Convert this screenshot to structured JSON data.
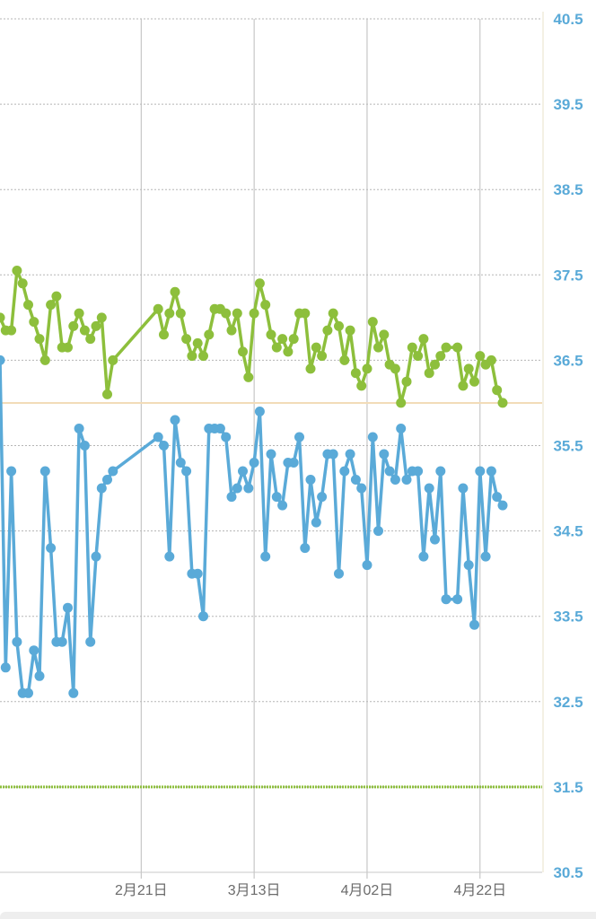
{
  "chart_data": {
    "type": "line",
    "xaxis": {
      "start": "2025-01-27",
      "end": "2025-05-03",
      "ticks": [
        {
          "date": "2025-02-21",
          "label": "2月21日"
        },
        {
          "date": "2025-03-13",
          "label": "3月13日"
        },
        {
          "date": "2025-04-02",
          "label": "4月02日"
        },
        {
          "date": "2025-04-22",
          "label": "4月22日"
        }
      ]
    },
    "yaxis": {
      "position": "right",
      "range": [
        30.5,
        40.5
      ],
      "ticks": [
        "40.5",
        "39.5",
        "38.5",
        "37.5",
        "36.5",
        "35.5",
        "34.5",
        "33.5",
        "32.5",
        "31.5",
        "30.5"
      ]
    },
    "grid": true,
    "reference_lines": [
      {
        "y": 36.0,
        "color": "#f2dcb8",
        "style": "solid"
      },
      {
        "y": 31.5,
        "color": "#8dbf3c",
        "style": "dotted"
      }
    ],
    "series": [
      {
        "color": "#8dbf3c",
        "points": [
          [
            "2025-01-27",
            37.0
          ],
          [
            "2025-01-28",
            36.85
          ],
          [
            "2025-01-29",
            36.85
          ],
          [
            "2025-01-30",
            37.55
          ],
          [
            "2025-01-31",
            37.4
          ],
          [
            "2025-02-01",
            37.15
          ],
          [
            "2025-02-02",
            36.95
          ],
          [
            "2025-02-03",
            36.75
          ],
          [
            "2025-02-04",
            36.5
          ],
          [
            "2025-02-05",
            37.15
          ],
          [
            "2025-02-06",
            37.25
          ],
          [
            "2025-02-07",
            36.65
          ],
          [
            "2025-02-08",
            36.65
          ],
          [
            "2025-02-09",
            36.9
          ],
          [
            "2025-02-10",
            37.05
          ],
          [
            "2025-02-11",
            36.85
          ],
          [
            "2025-02-12",
            36.75
          ],
          [
            "2025-02-13",
            36.9
          ],
          [
            "2025-02-14",
            37.0
          ],
          [
            "2025-02-15",
            36.1
          ],
          [
            "2025-02-16",
            36.5
          ],
          [
            "2025-02-24",
            37.1
          ],
          [
            "2025-02-25",
            36.8
          ],
          [
            "2025-02-26",
            37.05
          ],
          [
            "2025-02-27",
            37.3
          ],
          [
            "2025-02-28",
            37.05
          ],
          [
            "2025-03-01",
            36.75
          ],
          [
            "2025-03-02",
            36.55
          ],
          [
            "2025-03-03",
            36.7
          ],
          [
            "2025-03-04",
            36.55
          ],
          [
            "2025-03-05",
            36.8
          ],
          [
            "2025-03-06",
            37.1
          ],
          [
            "2025-03-07",
            37.1
          ],
          [
            "2025-03-08",
            37.05
          ],
          [
            "2025-03-09",
            36.85
          ],
          [
            "2025-03-10",
            37.05
          ],
          [
            "2025-03-11",
            36.6
          ],
          [
            "2025-03-12",
            36.3
          ],
          [
            "2025-03-13",
            37.05
          ],
          [
            "2025-03-14",
            37.4
          ],
          [
            "2025-03-15",
            37.15
          ],
          [
            "2025-03-16",
            36.8
          ],
          [
            "2025-03-17",
            36.65
          ],
          [
            "2025-03-18",
            36.75
          ],
          [
            "2025-03-19",
            36.6
          ],
          [
            "2025-03-20",
            36.75
          ],
          [
            "2025-03-21",
            37.05
          ],
          [
            "2025-03-22",
            37.05
          ],
          [
            "2025-03-23",
            36.4
          ],
          [
            "2025-03-24",
            36.65
          ],
          [
            "2025-03-25",
            36.55
          ],
          [
            "2025-03-26",
            36.85
          ],
          [
            "2025-03-27",
            37.05
          ],
          [
            "2025-03-28",
            36.9
          ],
          [
            "2025-03-29",
            36.5
          ],
          [
            "2025-03-30",
            36.85
          ],
          [
            "2025-03-31",
            36.35
          ],
          [
            "2025-04-01",
            36.2
          ],
          [
            "2025-04-02",
            36.4
          ],
          [
            "2025-04-03",
            36.95
          ],
          [
            "2025-04-04",
            36.65
          ],
          [
            "2025-04-05",
            36.8
          ],
          [
            "2025-04-06",
            36.45
          ],
          [
            "2025-04-07",
            36.4
          ],
          [
            "2025-04-08",
            36.0
          ],
          [
            "2025-04-09",
            36.25
          ],
          [
            "2025-04-10",
            36.65
          ],
          [
            "2025-04-11",
            36.55
          ],
          [
            "2025-04-12",
            36.75
          ],
          [
            "2025-04-13",
            36.35
          ],
          [
            "2025-04-14",
            36.45
          ],
          [
            "2025-04-15",
            36.55
          ],
          [
            "2025-04-16",
            36.65
          ],
          [
            "2025-04-18",
            36.65
          ],
          [
            "2025-04-19",
            36.2
          ],
          [
            "2025-04-20",
            36.4
          ],
          [
            "2025-04-21",
            36.25
          ],
          [
            "2025-04-22",
            36.55
          ],
          [
            "2025-04-23",
            36.45
          ],
          [
            "2025-04-24",
            36.5
          ],
          [
            "2025-04-25",
            36.15
          ],
          [
            "2025-04-26",
            36.0
          ]
        ]
      },
      {
        "color": "#5aaad8",
        "points": [
          [
            "2025-01-27",
            36.5
          ],
          [
            "2025-01-28",
            32.9
          ],
          [
            "2025-01-29",
            35.2
          ],
          [
            "2025-01-30",
            33.2
          ],
          [
            "2025-01-31",
            32.6
          ],
          [
            "2025-02-01",
            32.6
          ],
          [
            "2025-02-02",
            33.1
          ],
          [
            "2025-02-03",
            32.8
          ],
          [
            "2025-02-04",
            35.2
          ],
          [
            "2025-02-05",
            34.3
          ],
          [
            "2025-02-06",
            33.2
          ],
          [
            "2025-02-07",
            33.2
          ],
          [
            "2025-02-08",
            33.6
          ],
          [
            "2025-02-09",
            32.6
          ],
          [
            "2025-02-10",
            35.7
          ],
          [
            "2025-02-11",
            35.5
          ],
          [
            "2025-02-12",
            33.2
          ],
          [
            "2025-02-13",
            34.2
          ],
          [
            "2025-02-14",
            35.0
          ],
          [
            "2025-02-15",
            35.1
          ],
          [
            "2025-02-16",
            35.2
          ],
          [
            "2025-02-24",
            35.6
          ],
          [
            "2025-02-25",
            35.5
          ],
          [
            "2025-02-26",
            34.2
          ],
          [
            "2025-02-27",
            35.8
          ],
          [
            "2025-02-28",
            35.3
          ],
          [
            "2025-03-01",
            35.2
          ],
          [
            "2025-03-02",
            34.0
          ],
          [
            "2025-03-03",
            34.0
          ],
          [
            "2025-03-04",
            33.5
          ],
          [
            "2025-03-05",
            35.7
          ],
          [
            "2025-03-06",
            35.7
          ],
          [
            "2025-03-07",
            35.7
          ],
          [
            "2025-03-08",
            35.6
          ],
          [
            "2025-03-09",
            34.9
          ],
          [
            "2025-03-10",
            35.0
          ],
          [
            "2025-03-11",
            35.2
          ],
          [
            "2025-03-12",
            35.0
          ],
          [
            "2025-03-13",
            35.3
          ],
          [
            "2025-03-14",
            35.9
          ],
          [
            "2025-03-15",
            34.2
          ],
          [
            "2025-03-16",
            35.4
          ],
          [
            "2025-03-17",
            34.9
          ],
          [
            "2025-03-18",
            34.8
          ],
          [
            "2025-03-19",
            35.3
          ],
          [
            "2025-03-20",
            35.3
          ],
          [
            "2025-03-21",
            35.6
          ],
          [
            "2025-03-22",
            34.3
          ],
          [
            "2025-03-23",
            35.1
          ],
          [
            "2025-03-24",
            34.6
          ],
          [
            "2025-03-25",
            34.9
          ],
          [
            "2025-03-26",
            35.4
          ],
          [
            "2025-03-27",
            35.4
          ],
          [
            "2025-03-28",
            34.0
          ],
          [
            "2025-03-29",
            35.2
          ],
          [
            "2025-03-30",
            35.4
          ],
          [
            "2025-03-31",
            35.1
          ],
          [
            "2025-04-01",
            35.0
          ],
          [
            "2025-04-02",
            34.1
          ],
          [
            "2025-04-03",
            35.6
          ],
          [
            "2025-04-04",
            34.5
          ],
          [
            "2025-04-05",
            35.4
          ],
          [
            "2025-04-06",
            35.2
          ],
          [
            "2025-04-07",
            35.1
          ],
          [
            "2025-04-08",
            35.7
          ],
          [
            "2025-04-09",
            35.1
          ],
          [
            "2025-04-10",
            35.2
          ],
          [
            "2025-04-11",
            35.2
          ],
          [
            "2025-04-12",
            34.2
          ],
          [
            "2025-04-13",
            35.0
          ],
          [
            "2025-04-14",
            34.4
          ],
          [
            "2025-04-15",
            35.2
          ],
          [
            "2025-04-16",
            33.7
          ],
          [
            "2025-04-18",
            33.7
          ],
          [
            "2025-04-19",
            35.0
          ],
          [
            "2025-04-20",
            34.1
          ],
          [
            "2025-04-21",
            33.4
          ],
          [
            "2025-04-22",
            35.2
          ],
          [
            "2025-04-23",
            34.2
          ],
          [
            "2025-04-24",
            35.2
          ],
          [
            "2025-04-25",
            34.9
          ],
          [
            "2025-04-26",
            34.8
          ]
        ]
      }
    ]
  }
}
